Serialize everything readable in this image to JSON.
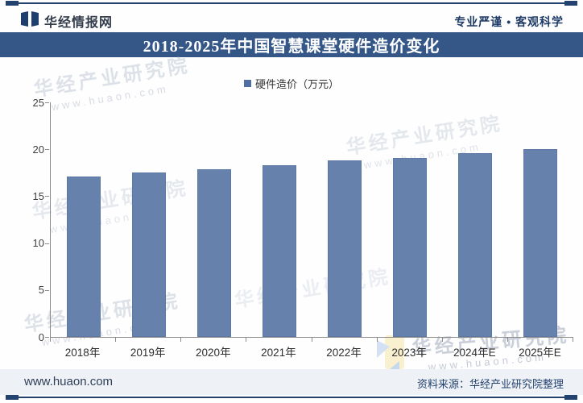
{
  "header": {
    "brand": "华经情报网",
    "tagline": "专业严谨 • 客观科学"
  },
  "title_bar": {
    "title": "2018-2025年中国智慧课堂硬件造价变化"
  },
  "legend": {
    "label": "硬件造价（万元）"
  },
  "chart_data": {
    "type": "bar",
    "title": "2018-2025年中国智慧课堂硬件造价变化",
    "series_name": "硬件造价（万元）",
    "categories": [
      "2018年",
      "2019年",
      "2020年",
      "2021年",
      "2022年",
      "2023年",
      "2024年E",
      "2025年E"
    ],
    "values": [
      17.1,
      17.5,
      17.9,
      18.3,
      18.8,
      19.1,
      19.6,
      20.0
    ],
    "xlabel": "",
    "ylabel": "",
    "ylim": [
      0,
      25
    ],
    "yticks": [
      0,
      5,
      10,
      15,
      20,
      25
    ],
    "grid": false,
    "legend_position": "top-center",
    "bar_color": "#6681ac"
  },
  "watermarks": {
    "text": "华经产业研究院",
    "url": "www.huaon.com"
  },
  "footer": {
    "site": "www.huaon.com",
    "source": "资料来源：华经产业研究院整理"
  },
  "colors": {
    "accent_navy": "#24426f",
    "title_bar_bg": "#355788",
    "bar": "#6681ac",
    "legend_swatch": "#4e6ea4",
    "footer_bg": "#eef1f6"
  }
}
